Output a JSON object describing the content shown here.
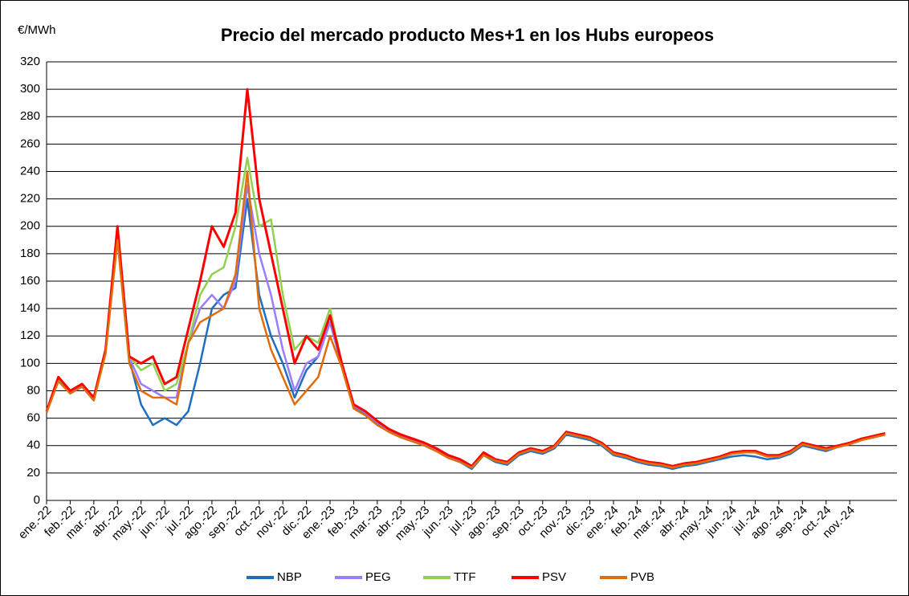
{
  "chart_data": {
    "type": "line",
    "title": "Precio del mercado producto Mes+1 en los Hubs europeos",
    "y_label": "€/MWh",
    "categories": [
      "ene.-22",
      null,
      "feb.-22",
      null,
      "mar.-22",
      null,
      "abr.-22",
      null,
      "may.-22",
      null,
      "jun.-22",
      null,
      "jul.-22",
      null,
      "ago.-22",
      null,
      "sep.-22",
      null,
      "oct.-22",
      null,
      "nov.-22",
      null,
      "dic.-22",
      null,
      "ene.-23",
      null,
      "feb.-23",
      null,
      "mar.-23",
      null,
      "abr.-23",
      null,
      "may.-23",
      null,
      "jun.-23",
      null,
      "jul.-23",
      null,
      "ago.-23",
      null,
      "sep.-23",
      null,
      "oct.-23",
      null,
      "nov.-23",
      null,
      "dic.-23",
      null,
      "ene.-24",
      null,
      "feb.-24",
      null,
      "mar.-24",
      null,
      "abr.-24",
      null,
      "may.-24",
      null,
      "jun.-24",
      null,
      "jul.-24",
      null,
      "ago.-24",
      null,
      "sep.-24",
      null,
      "oct.-24",
      null,
      "nov.-24",
      null,
      null,
      null
    ],
    "series": [
      {
        "name": "NBP",
        "color": "#1f6fbf",
        "values": [
          64,
          88,
          78,
          83,
          73,
          108,
          195,
          103,
          70,
          55,
          60,
          55,
          65,
          100,
          140,
          150,
          155,
          220,
          150,
          120,
          100,
          75,
          95,
          105,
          130,
          98,
          68,
          63,
          56,
          50,
          46,
          43,
          40,
          36,
          31,
          28,
          23,
          33,
          28,
          26,
          33,
          36,
          34,
          38,
          48,
          46,
          44,
          40,
          33,
          31,
          28,
          26,
          25,
          23,
          25,
          26,
          28,
          30,
          32,
          33,
          32,
          30,
          31,
          34,
          40,
          38,
          36,
          39,
          41,
          44,
          46,
          48
        ]
      },
      {
        "name": "PEG",
        "color": "#9b7dff",
        "values": [
          64,
          88,
          79,
          84,
          74,
          109,
          197,
          104,
          85,
          80,
          75,
          75,
          115,
          140,
          150,
          140,
          160,
          230,
          180,
          150,
          110,
          80,
          100,
          105,
          130,
          99,
          69,
          64,
          57,
          51,
          47,
          44,
          41,
          37,
          32,
          29,
          24,
          34,
          29,
          27,
          34,
          37,
          35,
          39,
          49,
          47,
          45,
          41,
          34,
          32,
          29,
          27,
          26,
          24,
          26,
          27,
          29,
          31,
          34,
          35,
          35,
          32,
          32,
          35,
          41,
          39,
          37,
          39,
          41,
          44,
          46,
          48
        ]
      },
      {
        "name": "TTF",
        "color": "#92d050",
        "values": [
          65,
          89,
          80,
          85,
          75,
          110,
          195,
          105,
          95,
          100,
          80,
          85,
          115,
          150,
          165,
          170,
          200,
          250,
          200,
          205,
          150,
          110,
          120,
          115,
          140,
          100,
          70,
          65,
          58,
          52,
          48,
          45,
          42,
          38,
          33,
          30,
          25,
          35,
          30,
          28,
          35,
          38,
          36,
          40,
          50,
          48,
          46,
          42,
          35,
          33,
          30,
          28,
          27,
          25,
          27,
          28,
          30,
          32,
          35,
          36,
          36,
          33,
          33,
          36,
          42,
          40,
          38,
          40,
          42,
          45,
          47,
          49
        ]
      },
      {
        "name": "PSV",
        "color": "#ff0000",
        "values": [
          65,
          90,
          80,
          85,
          75,
          110,
          200,
          105,
          100,
          105,
          85,
          90,
          125,
          160,
          200,
          185,
          210,
          300,
          220,
          180,
          140,
          100,
          120,
          110,
          135,
          100,
          70,
          65,
          58,
          52,
          48,
          45,
          42,
          38,
          33,
          30,
          25,
          35,
          30,
          28,
          35,
          38,
          36,
          40,
          50,
          48,
          46,
          42,
          35,
          33,
          30,
          28,
          27,
          25,
          27,
          28,
          30,
          32,
          35,
          36,
          36,
          33,
          33,
          36,
          42,
          40,
          38,
          40,
          42,
          45,
          47,
          49
        ]
      },
      {
        "name": "PVB",
        "color": "#e36c0a",
        "values": [
          64,
          87,
          78,
          83,
          73,
          107,
          190,
          100,
          80,
          75,
          75,
          70,
          115,
          130,
          135,
          140,
          165,
          240,
          140,
          110,
          90,
          70,
          80,
          90,
          120,
          97,
          67,
          62,
          55,
          50,
          46,
          43,
          40,
          36,
          31,
          28,
          24,
          33,
          29,
          27,
          34,
          37,
          35,
          39,
          49,
          47,
          45,
          41,
          34,
          32,
          29,
          27,
          26,
          24,
          26,
          27,
          29,
          31,
          34,
          35,
          35,
          32,
          32,
          35,
          41,
          39,
          37,
          39,
          41,
          44,
          46,
          48
        ]
      }
    ],
    "ylim": [
      0,
      320
    ],
    "yticks": [
      0,
      20,
      40,
      60,
      80,
      100,
      120,
      140,
      160,
      180,
      200,
      220,
      240,
      260,
      280,
      300,
      320
    ],
    "grid": true,
    "legend": "bottom"
  }
}
